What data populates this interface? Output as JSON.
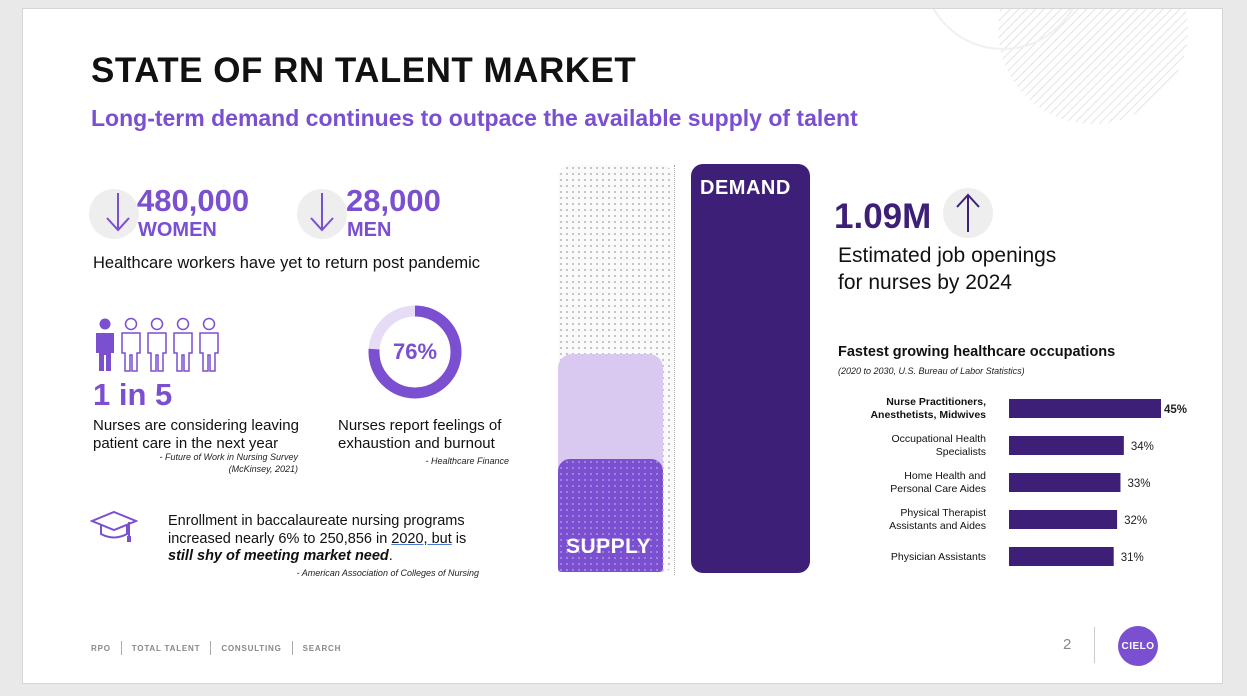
{
  "slide": {
    "title": "STATE OF RN TALENT MARKET",
    "subtitle": "Long-term demand continues to outpace the available supply of talent"
  },
  "stats": {
    "women_value": "480,000",
    "women_label": "WOMEN",
    "men_value": "28,000",
    "men_label": "MEN",
    "return_text": "Healthcare workers have yet to return post pandemic",
    "one_in_five": "1 in 5",
    "leaving_text": "Nurses are considering leaving patient care in the next year",
    "leaving_source_1": "- Future of Work in Nursing Survey",
    "leaving_source_2": "(McKinsey, 2021)",
    "burnout_pct": "76%",
    "burnout_fraction": 0.76,
    "burnout_text": "Nurses report feelings of exhaustion and burnout",
    "burnout_source": "- Healthcare Finance",
    "enroll_line1": "Enrollment in baccalaureate nursing programs",
    "enroll_line2_a": "increased nearly 6% to 250,856 in ",
    "enroll_line2_u": "2020, but",
    "enroll_line2_b": " is",
    "enroll_line3": "still shy of meeting market need",
    "enroll_line3_end": ".",
    "enroll_source": "- American Association of Colleges of Nursing",
    "people_highlighted": 1,
    "people_total": 5
  },
  "supply_demand": {
    "supply_label": "SUPPLY",
    "demand_label": "DEMAND"
  },
  "jobs": {
    "value": "1.09M",
    "line1": "Estimated job openings",
    "line2": "for nurses by 2024"
  },
  "chart_data": {
    "type": "bar",
    "orientation": "horizontal",
    "title": "Fastest growing healthcare occupations",
    "subtitle": "(2020 to 2030, U.S. Bureau of Labor Statistics)",
    "categories": [
      [
        "Nurse Practitioners,",
        "Anesthetists, Midwives"
      ],
      [
        "Occupational Health",
        "Specialists"
      ],
      [
        "Home Health and",
        "Personal Care Aides"
      ],
      [
        "Physical Therapist",
        "Assistants and Aides"
      ],
      [
        "Physician Assistants"
      ]
    ],
    "values": [
      45,
      34,
      33,
      32,
      31
    ],
    "value_labels": [
      "45%",
      "34%",
      "33%",
      "32%",
      "31%"
    ],
    "xlim": [
      0,
      45
    ],
    "bold_first": true
  },
  "footer": {
    "items": [
      "RPO",
      "TOTAL TALENT",
      "CONSULTING",
      "SEARCH"
    ],
    "page": "2",
    "logo": "CIELO"
  },
  "colors": {
    "purple": "#7a4fd0",
    "dark_purple": "#3d1f78",
    "light_purple": "#d9c8f0"
  }
}
